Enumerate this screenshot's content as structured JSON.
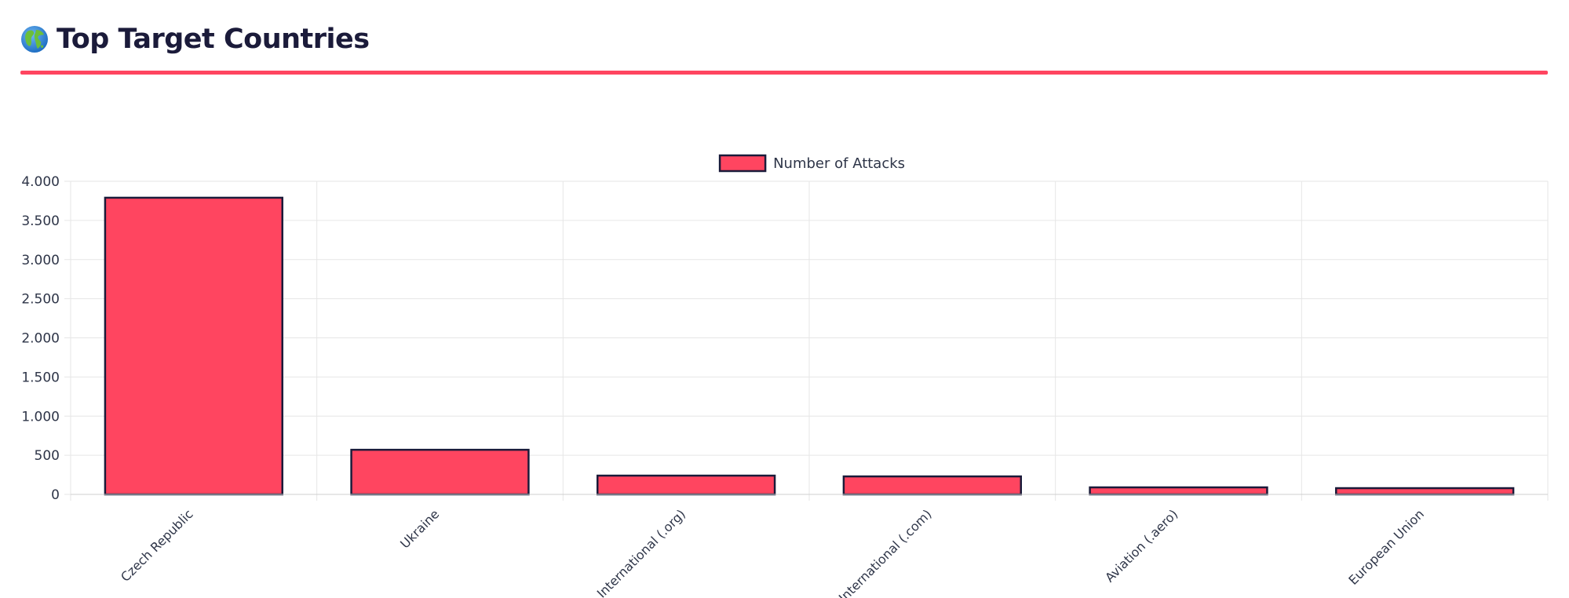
{
  "header": {
    "title": "Top Target Countries",
    "icon": "globe-icon"
  },
  "colors": {
    "accent": "#ff4560",
    "bar_fill": "#ff4560",
    "bar_border": "#1b1b3a",
    "title": "#1b1b3a",
    "grid": "#e6e6e6",
    "text": "#2e3548"
  },
  "chart_data": {
    "type": "bar",
    "categories": [
      "Czech Republic",
      "Ukraine",
      "International (.org)",
      "International (.com)",
      "Aviation (.aero)",
      "European Union"
    ],
    "series": [
      {
        "name": "Number of Attacks",
        "values": [
          3790,
          570,
          240,
          230,
          90,
          80
        ]
      }
    ],
    "ylim": [
      0,
      4000
    ],
    "yticks": [
      0,
      500,
      1000,
      1500,
      2000,
      2500,
      3000,
      3500,
      4000
    ],
    "ytick_labels": [
      "0",
      "500",
      "1.000",
      "1.500",
      "2.000",
      "2.500",
      "3.000",
      "3.500",
      "4.000"
    ],
    "grid": true,
    "legend": "top-center",
    "xtick_rotation": -45
  }
}
